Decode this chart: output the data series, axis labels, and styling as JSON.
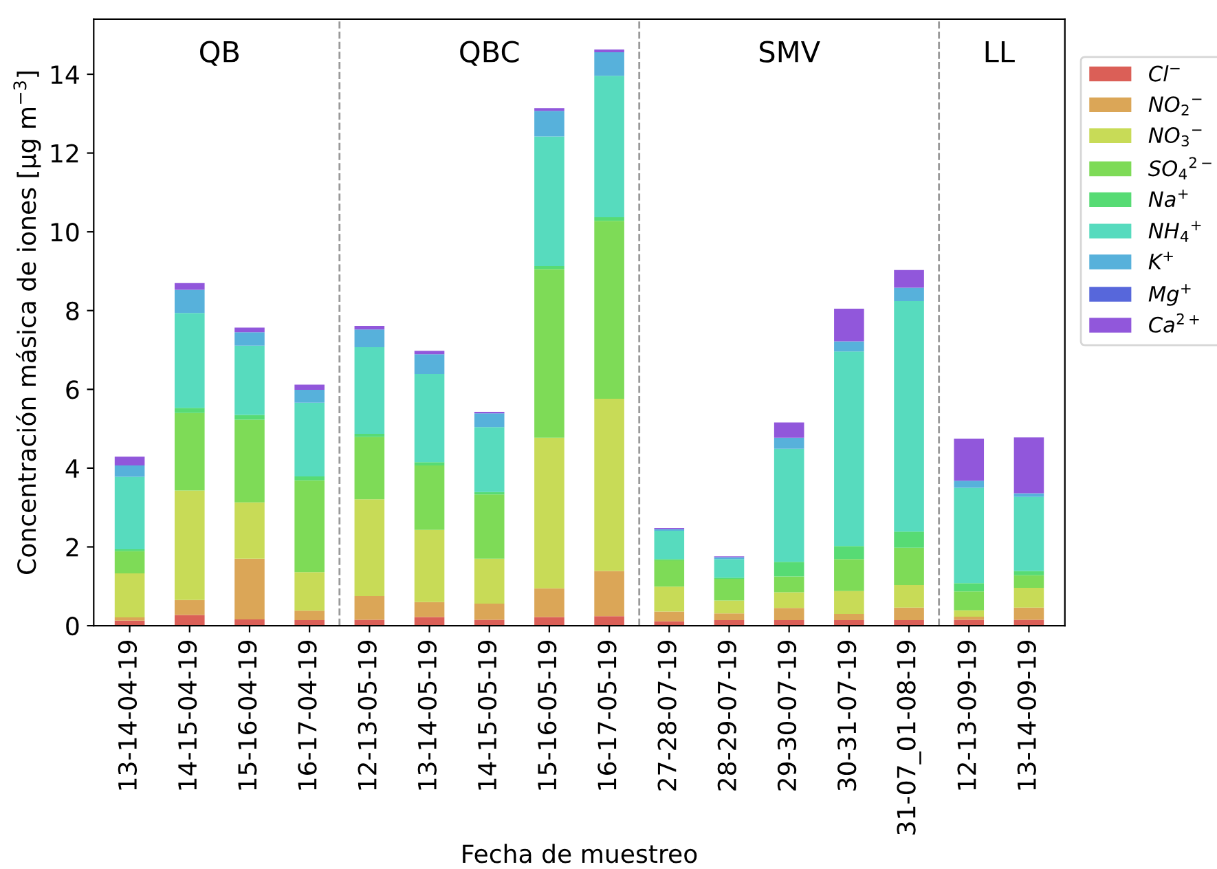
{
  "chart_data": {
    "type": "bar",
    "stacked": true,
    "xlabel": "Fecha de muestreo",
    "ylabel": "Concentración másica de iones [μg m$^{−3}$]",
    "categories": [
      "13-14-04-19",
      "14-15-04-19",
      "15-16-04-19",
      "16-17-04-19",
      "12-13-05-19",
      "13-14-05-19",
      "14-15-05-19",
      "15-16-05-19",
      "16-17-05-19",
      "27-28-07-19",
      "28-29-07-19",
      "29-30-07-19",
      "30-31-07-19",
      "31-07_01-08-19",
      "12-13-09-19",
      "13-14-09-19"
    ],
    "series": [
      {
        "name": "Cl$^{−}$",
        "color": "#db5f57",
        "values": [
          0.13,
          0.27,
          0.16,
          0.14,
          0.15,
          0.22,
          0.15,
          0.22,
          0.24,
          0.11,
          0.14,
          0.14,
          0.14,
          0.14,
          0.15,
          0.15
        ]
      },
      {
        "name": "NO$_{2}$$^{−}$",
        "color": "#dba657",
        "values": [
          0.08,
          0.38,
          1.54,
          0.24,
          0.6,
          0.38,
          0.41,
          0.73,
          1.15,
          0.25,
          0.17,
          0.31,
          0.16,
          0.32,
          0.08,
          0.31
        ]
      },
      {
        "name": "NO$_{3}$$^{−}$",
        "color": "#c8db57",
        "values": [
          1.12,
          2.78,
          1.43,
          0.98,
          2.46,
          1.83,
          1.14,
          3.82,
          4.37,
          0.63,
          0.33,
          0.4,
          0.58,
          0.57,
          0.16,
          0.5
        ]
      },
      {
        "name": "SO$_{4}$$^{2−}$",
        "color": "#7edb57",
        "values": [
          0.56,
          1.97,
          2.1,
          2.33,
          1.58,
          1.64,
          1.63,
          4.28,
          4.52,
          0.67,
          0.55,
          0.4,
          0.81,
          0.95,
          0.48,
          0.32
        ]
      },
      {
        "name": "Na$^{+}$",
        "color": "#57db74",
        "values": [
          0.05,
          0.13,
          0.12,
          0.1,
          0.08,
          0.08,
          0.06,
          0.08,
          0.09,
          0.03,
          0.03,
          0.37,
          0.33,
          0.41,
          0.21,
          0.11
        ]
      },
      {
        "name": "NH$_{4}$$^{+}$",
        "color": "#57dbbe",
        "values": [
          1.84,
          2.41,
          1.76,
          1.87,
          2.2,
          2.24,
          1.65,
          3.29,
          3.59,
          0.72,
          0.47,
          2.87,
          4.94,
          5.85,
          2.42,
          1.88
        ]
      },
      {
        "name": "K$^{+}$",
        "color": "#57b1db",
        "values": [
          0.29,
          0.59,
          0.34,
          0.33,
          0.45,
          0.5,
          0.35,
          0.65,
          0.6,
          0.04,
          0.05,
          0.28,
          0.26,
          0.34,
          0.18,
          0.09
        ]
      },
      {
        "name": "Mg$^{+}$",
        "color": "#5767db",
        "values": [
          0,
          0,
          0,
          0,
          0,
          0,
          0,
          0,
          0,
          0,
          0,
          0,
          0,
          0,
          0,
          0
        ]
      },
      {
        "name": "Ca$^{2+}$",
        "color": "#9157db",
        "values": [
          0.22,
          0.17,
          0.12,
          0.13,
          0.09,
          0.09,
          0.04,
          0.07,
          0.07,
          0.03,
          0.02,
          0.39,
          0.83,
          0.45,
          1.07,
          1.42
        ]
      }
    ],
    "ylim": [
      0,
      15.4
    ],
    "yticks": [
      0,
      2,
      4,
      6,
      8,
      10,
      12,
      14
    ],
    "annotations": [
      "QB",
      "QBC",
      "SMV",
      "LL"
    ],
    "legend": "right",
    "grid": false
  }
}
